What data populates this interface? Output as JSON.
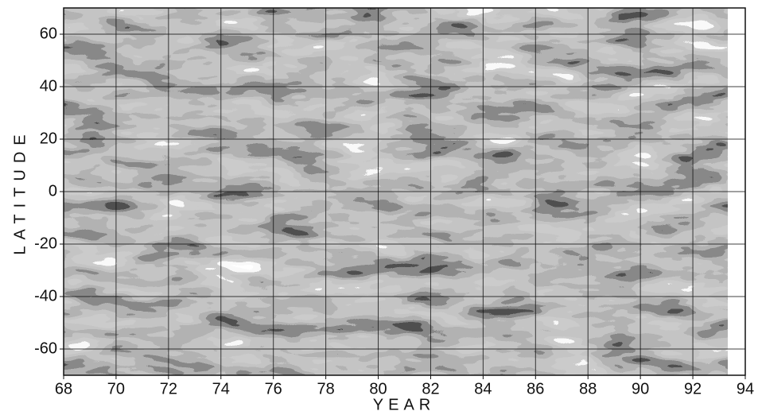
{
  "chart_data": {
    "type": "heatmap",
    "x_label": "YEAR",
    "y_label": "LATITUDE",
    "xlim": [
      68,
      94
    ],
    "xticks": [
      68,
      70,
      72,
      74,
      76,
      78,
      80,
      82,
      84,
      86,
      88,
      90,
      92,
      94
    ],
    "ylim": [
      -70,
      70
    ],
    "yticks": [
      -60,
      -40,
      -20,
      0,
      20,
      40,
      60
    ],
    "grid": true
  }
}
